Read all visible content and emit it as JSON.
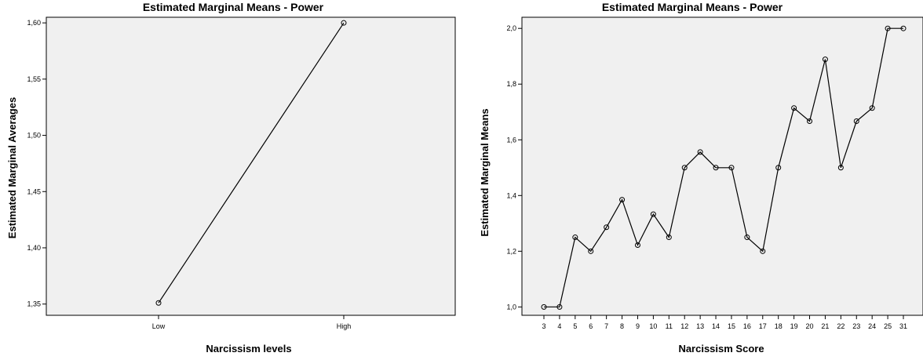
{
  "chart_data": [
    {
      "type": "line",
      "title": "Estimated Marginal Means - Power",
      "xlabel": "Narcissism levels",
      "ylabel": "Estimated Marginal Averages",
      "categories": [
        "Low",
        "High"
      ],
      "values": [
        1.351,
        1.6
      ],
      "ylim": [
        1.34,
        1.605
      ],
      "yticks": [
        1.35,
        1.4,
        1.45,
        1.5,
        1.55,
        1.6
      ],
      "ytick_labels": [
        "1,35",
        "1,40",
        "1,45",
        "1,50",
        "1,55",
        "1,60"
      ],
      "grid": false,
      "colors": {
        "plot_bg": "#f0f0f0",
        "line": "#000000"
      }
    },
    {
      "type": "line",
      "title": "Estimated Marginal Means - Power",
      "xlabel": "Narcissism Score",
      "ylabel": "Estimated Marginal Means",
      "categories": [
        "3",
        "4",
        "5",
        "6",
        "7",
        "8",
        "9",
        "10",
        "11",
        "12",
        "13",
        "14",
        "15",
        "16",
        "17",
        "18",
        "19",
        "20",
        "21",
        "22",
        "23",
        "24",
        "25",
        "31"
      ],
      "values": [
        1.0,
        1.0,
        1.25,
        1.2,
        1.286,
        1.385,
        1.222,
        1.333,
        1.25,
        1.5,
        1.556,
        1.5,
        1.5,
        1.25,
        1.2,
        1.5,
        1.714,
        1.667,
        1.889,
        1.5,
        1.667,
        1.714,
        2.0,
        2.0
      ],
      "ylim": [
        0.97,
        2.04
      ],
      "yticks": [
        1.0,
        1.2,
        1.4,
        1.6,
        1.8,
        2.0
      ],
      "ytick_labels": [
        "1,0",
        "1,2",
        "1,4",
        "1,6",
        "1,8",
        "2,0"
      ],
      "grid": false,
      "colors": {
        "plot_bg": "#f0f0f0",
        "line": "#000000"
      }
    }
  ]
}
